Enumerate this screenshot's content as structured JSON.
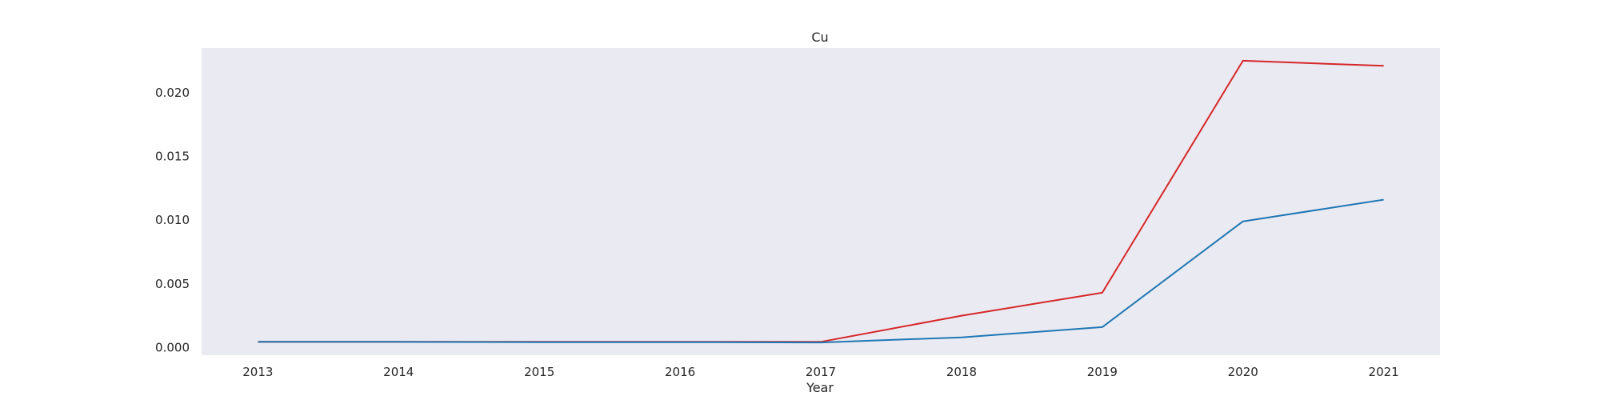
{
  "chart_data": {
    "type": "line",
    "title": "Cu",
    "xlabel": "Year",
    "ylabel": "",
    "x": [
      2013,
      2014,
      2015,
      2016,
      2017,
      2018,
      2019,
      2020,
      2021
    ],
    "xlim": [
      2012.6,
      2021.4
    ],
    "ylim": [
      -0.0006,
      0.0235
    ],
    "yticks": [
      "0.000",
      "0.005",
      "0.010",
      "0.015",
      "0.020"
    ],
    "grid": false,
    "background": "#eaeaf2",
    "series": [
      {
        "color": "#d62728",
        "values": [
          0.00045,
          0.00045,
          0.00045,
          0.00045,
          0.00045,
          0.0025,
          0.0043,
          0.0225,
          0.0221
        ]
      },
      {
        "color": "#1f77b4",
        "values": [
          0.00045,
          0.00045,
          0.00042,
          0.00042,
          0.0004,
          0.0008,
          0.0016,
          0.0099,
          0.0116
        ]
      }
    ]
  }
}
